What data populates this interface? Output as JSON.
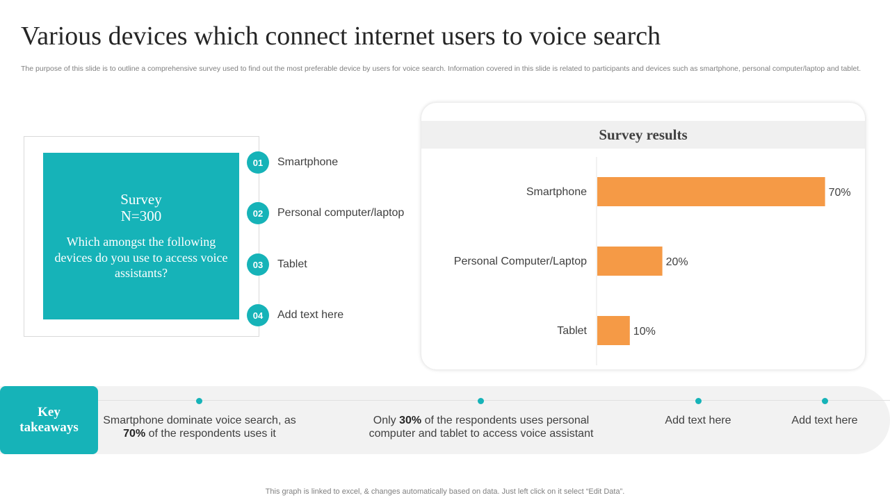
{
  "title": "Various devices which connect internet users to voice search",
  "subtitle": "The purpose of this slide is to outline a comprehensive survey used to find out the most preferable device by users for voice search. Information covered in this slide is related to participants and devices such as smartphone, personal computer/laptop and tablet.",
  "survey": {
    "title": "Survey",
    "n": "N=300",
    "question": "Which amongst the following devices do you use to access voice assistants?"
  },
  "options": [
    {
      "num": "01",
      "label": "Smartphone"
    },
    {
      "num": "02",
      "label": "Personal computer/laptop"
    },
    {
      "num": "03",
      "label": "Tablet"
    },
    {
      "num": "04",
      "label": "Add text here"
    }
  ],
  "colors": {
    "accent": "#16b3b8",
    "bar": "#f59a46"
  },
  "chart_data": {
    "type": "bar",
    "orientation": "horizontal",
    "title": "Survey results",
    "categories": [
      "Smartphone",
      "Personal Computer/Laptop",
      "Tablet"
    ],
    "values": [
      70,
      20,
      10
    ],
    "data_labels": [
      "70%",
      "20%",
      "10%"
    ],
    "xlim": [
      0,
      100
    ],
    "grid": false,
    "legend": "none"
  },
  "takeaways": {
    "label": "Key takeaways",
    "items": [
      {
        "pre": "Smartphone dominate voice search, as ",
        "bold": "70%",
        "post": " of the respondents uses it"
      },
      {
        "pre": "Only ",
        "bold": "30%",
        "post": " of the respondents uses personal computer and tablet to access voice assistant"
      },
      {
        "pre": "Add text here",
        "bold": "",
        "post": ""
      },
      {
        "pre": "Add text here",
        "bold": "",
        "post": ""
      }
    ]
  },
  "footer": "This graph is linked to excel, & changes automatically based on data. Just left click on it select “Edit Data”."
}
